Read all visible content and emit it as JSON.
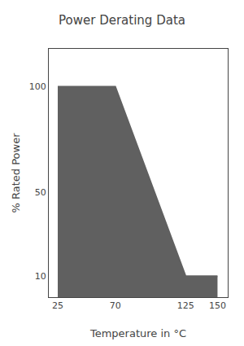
{
  "chart_data": {
    "type": "area",
    "title": "Power Derating Data",
    "x": [
      25,
      70,
      125,
      150
    ],
    "values": [
      100,
      100,
      10,
      10
    ],
    "xlabel": "Temperature in °C",
    "ylabel": "% Rated Power",
    "xlim": [
      18,
      158
    ],
    "ylim": [
      0,
      118
    ],
    "xticks": [
      25,
      70,
      125,
      150
    ],
    "yticks": [
      10,
      50,
      100
    ],
    "color": "#606060",
    "grid": false
  }
}
